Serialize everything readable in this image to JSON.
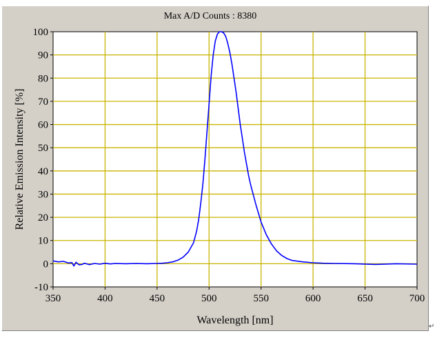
{
  "chart_data": {
    "type": "line",
    "title": "Max A/D Counts : 8380",
    "xlabel": "Wavelength [nm]",
    "ylabel": "Relative Emission Intensity [%]",
    "xlim": [
      350,
      700
    ],
    "ylim": [
      -10,
      100
    ],
    "xticks": [
      350,
      400,
      450,
      500,
      550,
      600,
      650,
      700
    ],
    "yticks": [
      -10,
      0,
      10,
      20,
      30,
      40,
      50,
      60,
      70,
      80,
      90,
      100
    ],
    "grid": true,
    "series": [
      {
        "color": "#0000ff",
        "x": [
          350,
          355,
          360,
          365,
          368,
          370,
          372,
          375,
          378,
          380,
          385,
          390,
          395,
          400,
          405,
          410,
          420,
          430,
          440,
          450,
          455,
          460,
          465,
          470,
          475,
          480,
          485,
          488,
          490,
          492,
          494,
          496,
          498,
          500,
          502,
          504,
          506,
          508,
          510,
          512,
          514,
          516,
          518,
          520,
          522,
          524,
          526,
          528,
          530,
          532,
          534,
          536,
          538,
          540,
          545,
          550,
          555,
          560,
          565,
          570,
          575,
          580,
          590,
          600,
          610,
          620,
          640,
          660,
          680,
          700
        ],
        "y": [
          1.2,
          0.8,
          1.0,
          0.3,
          0.5,
          -1.0,
          0.6,
          -0.5,
          -0.3,
          0.2,
          -0.4,
          0.1,
          -0.2,
          0.2,
          -0.1,
          0.1,
          0.0,
          0.1,
          0.0,
          0.1,
          0.2,
          0.4,
          0.8,
          1.5,
          2.8,
          5,
          9,
          14,
          19,
          26,
          34,
          45,
          57,
          69,
          81,
          90,
          96,
          99,
          100,
          100,
          99.5,
          98,
          95,
          91,
          86,
          80,
          74,
          67,
          60,
          54,
          48,
          43,
          38,
          34,
          25.5,
          18,
          12.5,
          8.5,
          5.5,
          3.5,
          2.2,
          1.4,
          0.8,
          0.4,
          0.2,
          0.1,
          0.0,
          -0.3,
          0.0,
          -0.2
        ]
      }
    ]
  },
  "corner_mark": "↵"
}
